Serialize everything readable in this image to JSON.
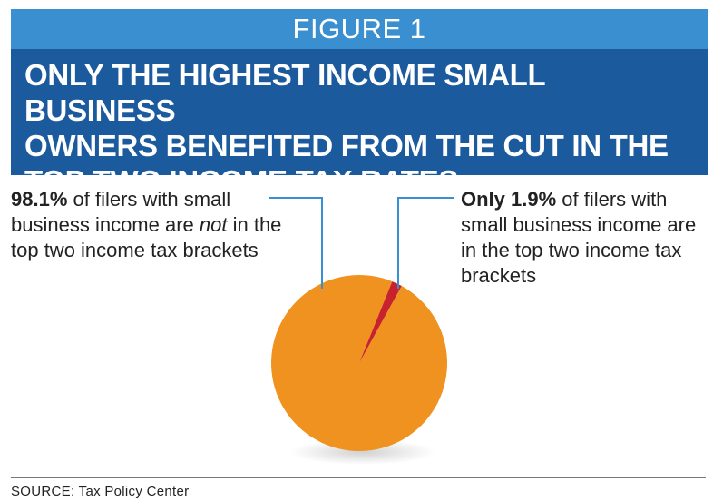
{
  "header": {
    "figure_label": "FIGURE 1",
    "title": "ONLY THE HIGHEST INCOME SMALL BUSINESS\nOWNERS BENEFITED FROM THE CUT IN THE\nTOP TWO INCOME TAX RATES"
  },
  "labels": {
    "left": {
      "value": "98.1%",
      "text_a": " of filers with small business income are ",
      "emphasis": "not",
      "text_b": " in the top two income tax brackets"
    },
    "right": {
      "value": "Only 1.9%",
      "text": " of filers with small business income are in the top two income tax brackets"
    }
  },
  "footer": {
    "source": "SOURCE:  Tax Policy Center"
  },
  "colors": {
    "header_light": "#3a8fd0",
    "header_dark": "#1c5a9e",
    "major_slice": "#f0921f",
    "minor_slice": "#c8232c",
    "leader_line": "#3a8fd0"
  },
  "chart_data": {
    "type": "pie",
    "title": "ONLY THE HIGHEST INCOME SMALL BUSINESS OWNERS BENEFITED FROM THE CUT IN THE TOP TWO INCOME TAX RATES",
    "slices": [
      {
        "label": "not in the top two income tax brackets",
        "value": 98.1
      },
      {
        "label": "in the top two income tax brackets",
        "value": 1.9
      }
    ]
  }
}
